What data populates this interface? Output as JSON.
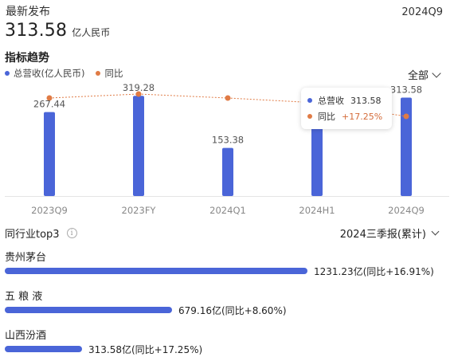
{
  "header": {
    "latest_label": "最新发布",
    "period": "2024Q9",
    "value": "313.58",
    "unit": "亿人民币"
  },
  "trend": {
    "title": "指标趋势",
    "filter_label": "全部"
  },
  "colors": {
    "bar": "#4a65d8",
    "line": "#e07b45",
    "axis_text": "#888888"
  },
  "chart_data": {
    "type": "bar",
    "categories": [
      "2023Q9",
      "2023FY",
      "2024Q1",
      "2024H1",
      "2024Q9"
    ],
    "series": [
      {
        "name": "总营收(亿人民币)",
        "type": "bar",
        "values": [
          267.44,
          319.28,
          153.38,
          218.0,
          313.58
        ]
      },
      {
        "name": "同比",
        "type": "line",
        "values": [
          null,
          null,
          null,
          null,
          17.25
        ]
      }
    ],
    "value_labels": [
      "267.44",
      "319.28",
      "153.38",
      "",
      "313.58"
    ],
    "ylim": [
      0,
      330
    ],
    "grid": false,
    "legend": "top-left",
    "tooltip": {
      "revenue_label": "总营收",
      "revenue_value": "313.58",
      "yoy_label": "同比",
      "yoy_value": "+17.25%"
    }
  },
  "peers": {
    "title": "同行业top3",
    "period_label": "2024三季报(累计)",
    "items": [
      {
        "name": "贵州茅台",
        "value": 1231.23,
        "label": "1231.23亿(同比+16.91%)"
      },
      {
        "name": "五 粮 液",
        "value": 679.16,
        "label": "679.16亿(同比+8.60%)"
      },
      {
        "name": "山西汾酒",
        "value": 313.58,
        "label": "313.58亿(同比+17.25%)"
      }
    ]
  }
}
